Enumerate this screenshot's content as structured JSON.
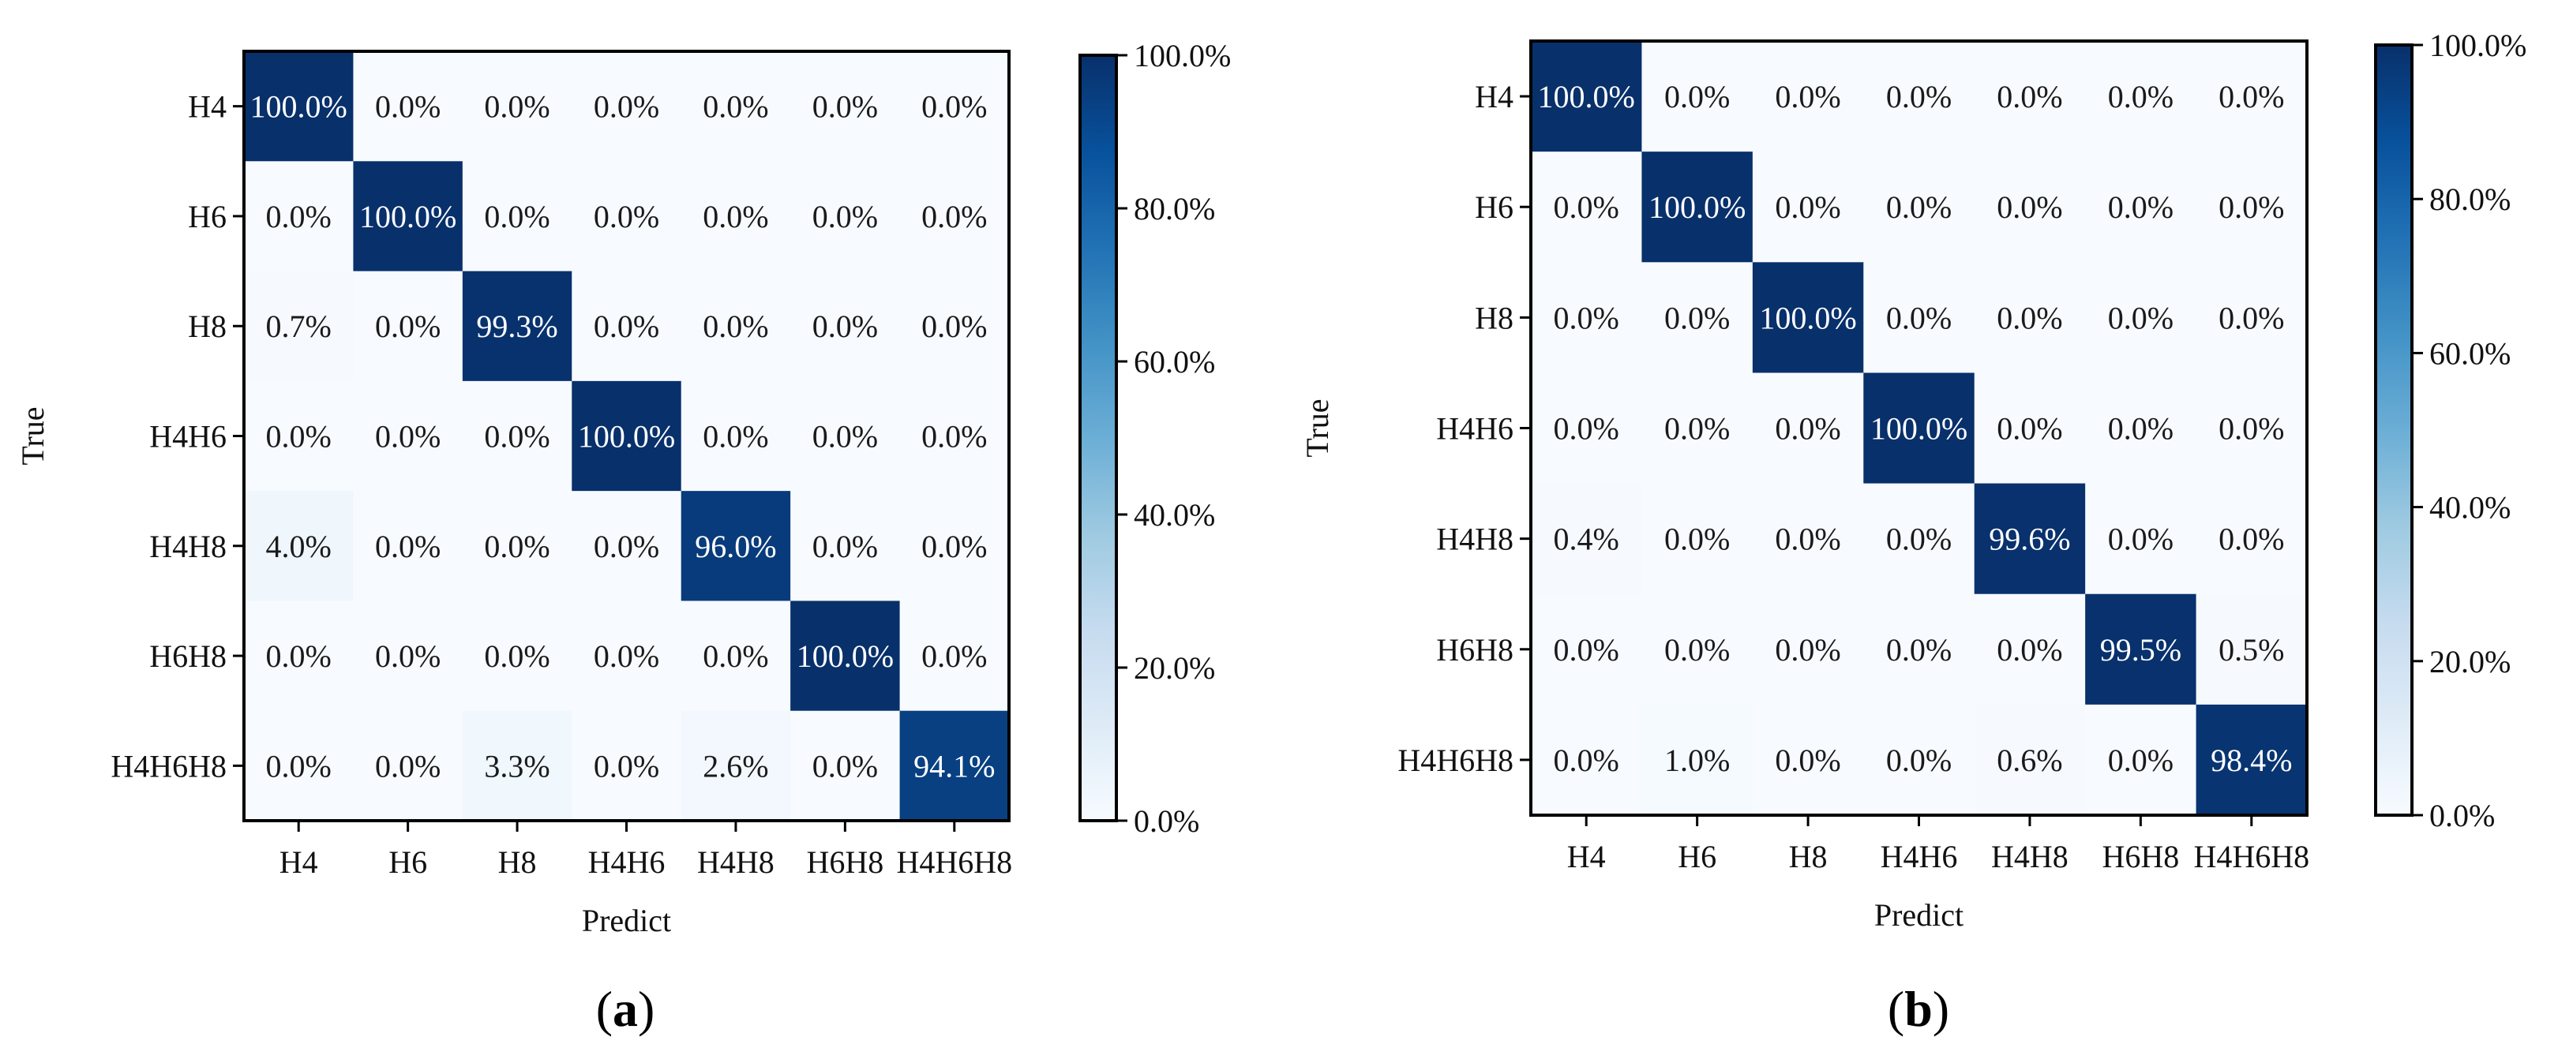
{
  "chart_data": [
    {
      "type": "heatmap",
      "panel_label": "(a)",
      "xlabel": "Predict",
      "ylabel": "True",
      "x_categories": [
        "H4",
        "H6",
        "H8",
        "H4H6",
        "H4H8",
        "H6H8",
        "H4H6H8"
      ],
      "y_categories": [
        "H4",
        "H6",
        "H8",
        "H4H6",
        "H4H8",
        "H6H8",
        "H4H6H8"
      ],
      "values": [
        [
          100.0,
          0.0,
          0.0,
          0.0,
          0.0,
          0.0,
          0.0
        ],
        [
          0.0,
          100.0,
          0.0,
          0.0,
          0.0,
          0.0,
          0.0
        ],
        [
          0.7,
          0.0,
          99.3,
          0.0,
          0.0,
          0.0,
          0.0
        ],
        [
          0.0,
          0.0,
          0.0,
          100.0,
          0.0,
          0.0,
          0.0
        ],
        [
          4.0,
          0.0,
          0.0,
          0.0,
          96.0,
          0.0,
          0.0
        ],
        [
          0.0,
          0.0,
          0.0,
          0.0,
          0.0,
          100.0,
          0.0
        ],
        [
          0.0,
          0.0,
          3.3,
          0.0,
          2.6,
          0.0,
          94.1
        ]
      ],
      "labels": [
        [
          "100.0%",
          "0.0%",
          "0.0%",
          "0.0%",
          "0.0%",
          "0.0%",
          "0.0%"
        ],
        [
          "0.0%",
          "100.0%",
          "0.0%",
          "0.0%",
          "0.0%",
          "0.0%",
          "0.0%"
        ],
        [
          "0.7%",
          "0.0%",
          "99.3%",
          "0.0%",
          "0.0%",
          "0.0%",
          "0.0%"
        ],
        [
          "0.0%",
          "0.0%",
          "0.0%",
          "100.0%",
          "0.0%",
          "0.0%",
          "0.0%"
        ],
        [
          "4.0%",
          "0.0%",
          "0.0%",
          "0.0%",
          "96.0%",
          "0.0%",
          "0.0%"
        ],
        [
          "0.0%",
          "0.0%",
          "0.0%",
          "0.0%",
          "0.0%",
          "100.0%",
          "0.0%"
        ],
        [
          "0.0%",
          "0.0%",
          "3.3%",
          "0.0%",
          "2.6%",
          "0.0%",
          "94.1%"
        ]
      ],
      "colorbar": {
        "min": 0,
        "max": 100,
        "ticks": [
          0,
          20,
          40,
          60,
          80,
          100
        ],
        "tick_labels": [
          "0.0%",
          "20.0%",
          "40.0%",
          "60.0%",
          "80.0%",
          "100.0%"
        ]
      },
      "colormap": "Blues"
    },
    {
      "type": "heatmap",
      "panel_label": "(b)",
      "xlabel": "Predict",
      "ylabel": "True",
      "x_categories": [
        "H4",
        "H6",
        "H8",
        "H4H6",
        "H4H8",
        "H6H8",
        "H4H6H8"
      ],
      "y_categories": [
        "H4",
        "H6",
        "H8",
        "H4H6",
        "H4H8",
        "H6H8",
        "H4H6H8"
      ],
      "values": [
        [
          100.0,
          0.0,
          0.0,
          0.0,
          0.0,
          0.0,
          0.0
        ],
        [
          0.0,
          100.0,
          0.0,
          0.0,
          0.0,
          0.0,
          0.0
        ],
        [
          0.0,
          0.0,
          100.0,
          0.0,
          0.0,
          0.0,
          0.0
        ],
        [
          0.0,
          0.0,
          0.0,
          100.0,
          0.0,
          0.0,
          0.0
        ],
        [
          0.4,
          0.0,
          0.0,
          0.0,
          99.6,
          0.0,
          0.0
        ],
        [
          0.0,
          0.0,
          0.0,
          0.0,
          0.0,
          99.5,
          0.5
        ],
        [
          0.0,
          1.0,
          0.0,
          0.0,
          0.6,
          0.0,
          98.4
        ]
      ],
      "labels": [
        [
          "100.0%",
          "0.0%",
          "0.0%",
          "0.0%",
          "0.0%",
          "0.0%",
          "0.0%"
        ],
        [
          "0.0%",
          "100.0%",
          "0.0%",
          "0.0%",
          "0.0%",
          "0.0%",
          "0.0%"
        ],
        [
          "0.0%",
          "0.0%",
          "100.0%",
          "0.0%",
          "0.0%",
          "0.0%",
          "0.0%"
        ],
        [
          "0.0%",
          "0.0%",
          "0.0%",
          "100.0%",
          "0.0%",
          "0.0%",
          "0.0%"
        ],
        [
          "0.4%",
          "0.0%",
          "0.0%",
          "0.0%",
          "99.6%",
          "0.0%",
          "0.0%"
        ],
        [
          "0.0%",
          "0.0%",
          "0.0%",
          "0.0%",
          "0.0%",
          "99.5%",
          "0.5%"
        ],
        [
          "0.0%",
          "1.0%",
          "0.0%",
          "0.0%",
          "0.6%",
          "0.0%",
          "98.4%"
        ]
      ],
      "colorbar": {
        "min": 0,
        "max": 100,
        "ticks": [
          0,
          20,
          40,
          60,
          80,
          100
        ],
        "tick_labels": [
          "0.0%",
          "20.0%",
          "40.0%",
          "60.0%",
          "80.0%",
          "100.0%"
        ]
      },
      "colormap": "Blues"
    }
  ]
}
